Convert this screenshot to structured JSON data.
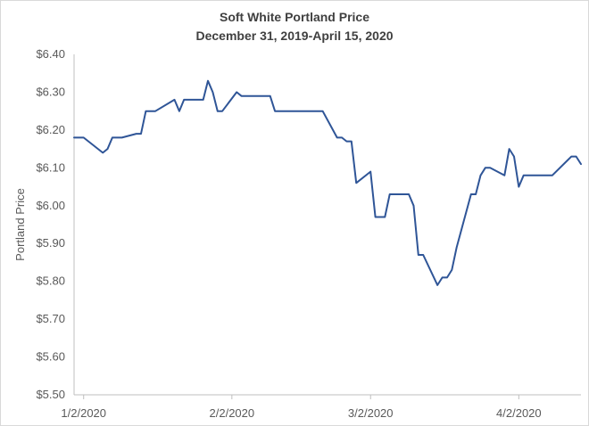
{
  "chart_data": {
    "type": "line",
    "title": "Soft White Portland Price",
    "subtitle": "December 31, 2019-April 15, 2020",
    "xlabel": "",
    "ylabel": "Portland Price",
    "x_range": [
      "2019-12-31",
      "2020-04-15"
    ],
    "ylim": [
      5.5,
      6.4
    ],
    "y_ticks": [
      5.5,
      5.6,
      5.7,
      5.8,
      5.9,
      6.0,
      6.1,
      6.2,
      6.3,
      6.4
    ],
    "y_tick_labels": [
      "$5.50",
      "$5.60",
      "$5.70",
      "$5.80",
      "$5.90",
      "$6.00",
      "$6.10",
      "$6.20",
      "$6.30",
      "$6.40"
    ],
    "x_ticks": [
      "2020-01-02",
      "2020-02-02",
      "2020-03-02",
      "2020-04-02"
    ],
    "x_tick_labels": [
      "1/2/2020",
      "2/2/2020",
      "3/2/2020",
      "4/2/2020"
    ],
    "grid": false,
    "legend": "none",
    "series": [
      {
        "color": "#2f5597",
        "x": [
          "2019-12-31",
          "2020-01-02",
          "2020-01-06",
          "2020-01-07",
          "2020-01-08",
          "2020-01-09",
          "2020-01-10",
          "2020-01-13",
          "2020-01-14",
          "2020-01-15",
          "2020-01-16",
          "2020-01-17",
          "2020-01-21",
          "2020-01-22",
          "2020-01-23",
          "2020-01-24",
          "2020-01-27",
          "2020-01-28",
          "2020-01-29",
          "2020-01-30",
          "2020-01-31",
          "2020-02-03",
          "2020-02-04",
          "2020-02-05",
          "2020-02-06",
          "2020-02-07",
          "2020-02-10",
          "2020-02-11",
          "2020-02-12",
          "2020-02-13",
          "2020-02-14",
          "2020-02-18",
          "2020-02-19",
          "2020-02-20",
          "2020-02-21",
          "2020-02-24",
          "2020-02-25",
          "2020-02-26",
          "2020-02-27",
          "2020-02-28",
          "2020-03-02",
          "2020-03-03",
          "2020-03-04",
          "2020-03-05",
          "2020-03-06",
          "2020-03-09",
          "2020-03-10",
          "2020-03-11",
          "2020-03-12",
          "2020-03-13",
          "2020-03-16",
          "2020-03-17",
          "2020-03-18",
          "2020-03-19",
          "2020-03-20",
          "2020-03-23",
          "2020-03-24",
          "2020-03-25",
          "2020-03-26",
          "2020-03-27",
          "2020-03-30",
          "2020-03-31",
          "2020-04-01",
          "2020-04-02",
          "2020-04-03",
          "2020-04-06",
          "2020-04-07",
          "2020-04-08",
          "2020-04-09",
          "2020-04-13",
          "2020-04-14",
          "2020-04-15"
        ],
        "values": [
          6.18,
          6.18,
          6.14,
          6.15,
          6.18,
          6.18,
          6.18,
          6.19,
          6.19,
          6.25,
          6.25,
          6.25,
          6.28,
          6.25,
          6.28,
          6.28,
          6.28,
          6.33,
          6.3,
          6.25,
          6.25,
          6.3,
          6.29,
          6.29,
          6.29,
          6.29,
          6.29,
          6.25,
          6.25,
          6.25,
          6.25,
          6.25,
          6.25,
          6.25,
          6.25,
          6.18,
          6.18,
          6.17,
          6.17,
          6.06,
          6.09,
          5.97,
          5.97,
          5.97,
          6.03,
          6.03,
          6.03,
          6.0,
          5.87,
          5.87,
          5.79,
          5.81,
          5.81,
          5.83,
          5.89,
          6.03,
          6.03,
          6.08,
          6.1,
          6.1,
          6.08,
          6.15,
          6.13,
          6.05,
          6.08,
          6.08,
          6.08,
          6.08,
          6.08,
          6.13,
          6.13,
          6.11
        ]
      }
    ]
  }
}
